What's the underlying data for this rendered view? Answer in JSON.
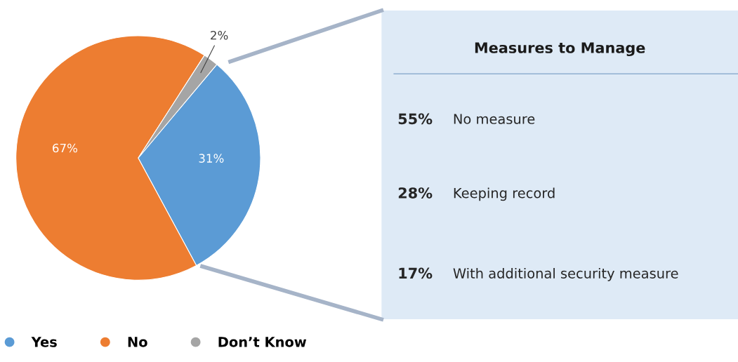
{
  "chart_data": [
    {
      "type": "pie",
      "categories": [
        "Yes",
        "No",
        "Don’t Know"
      ],
      "values": [
        31,
        67,
        2
      ],
      "value_labels": [
        "31%",
        "67%",
        "2%"
      ],
      "colors": [
        "#5b9bd5",
        "#ed7d31",
        "#a5a5a5"
      ],
      "legend": "bottom"
    },
    {
      "type": "other",
      "title": "Measures to Manage",
      "annotations": [
        "55%",
        "No measure",
        "28%",
        "Keeping record",
        "17%",
        "With additional security measure"
      ]
    }
  ]
}
